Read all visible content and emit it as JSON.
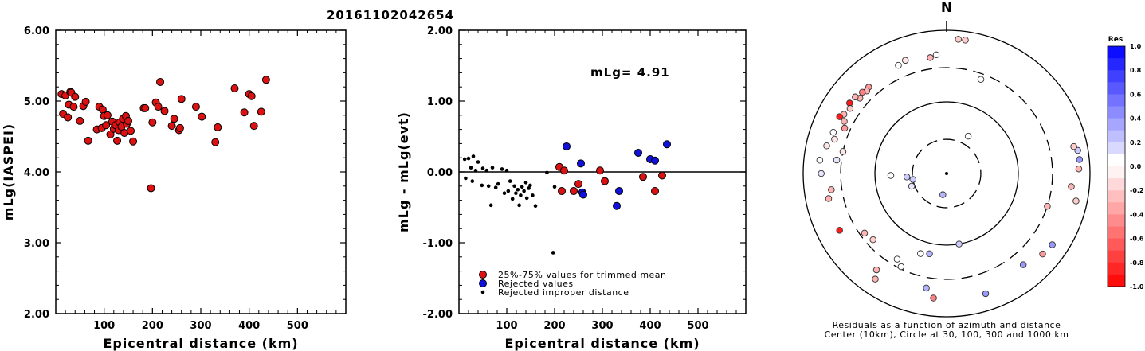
{
  "title": "20161102042654",
  "left_panel": {
    "ylabel": "mLg(IASPEI)",
    "xlabel": "Epicentral distance (km)",
    "yticks": [
      "2.00",
      "3.00",
      "4.00",
      "5.00",
      "6.00"
    ],
    "xticks": [
      "100",
      "200",
      "300",
      "400",
      "500"
    ]
  },
  "middle_panel": {
    "ylabel": "mLg - mLg(evt)",
    "xlabel": "Epicentral distance (km)",
    "yticks": [
      "-2.00",
      "-1.00",
      "0.00",
      "1.00",
      "2.00"
    ],
    "xticks": [
      "100",
      "200",
      "300",
      "400",
      "500"
    ],
    "annotation": "mLg= 4.91",
    "legend": [
      {
        "label": "25%-75% values for trimmed mean",
        "color": "#dd1111"
      },
      {
        "label": "Rejected values",
        "color": "#1111dd"
      },
      {
        "label": "Rejected improper distance",
        "color": "#000000"
      }
    ]
  },
  "polar_panel": {
    "north_label": "N",
    "caption_line1": "Residuals as a function of azimuth and distance",
    "caption_line2": "Center (10km), Circle at 30, 100, 300 and 1000 km"
  },
  "colorbar": {
    "title": "Res",
    "ticks": [
      "1.0",
      "0.8",
      "0.6",
      "0.4",
      "0.2",
      "0.0",
      "-0.2",
      "-0.4",
      "-0.6",
      "-0.8",
      "-1.0"
    ]
  },
  "colors": {
    "red": "#dd1111",
    "blue": "#1111dd",
    "black": "#000000"
  },
  "chart_data": [
    {
      "type": "scatter",
      "xlabel": "Epicentral distance (km)",
      "ylabel": "mLg(IASPEI)",
      "xlim": [
        0,
        600
      ],
      "ylim": [
        2,
        6
      ],
      "points": [
        [
          12,
          5.1
        ],
        [
          15,
          4.82
        ],
        [
          20,
          5.08
        ],
        [
          25,
          4.77
        ],
        [
          27,
          4.95
        ],
        [
          30,
          5.13
        ],
        [
          32,
          5.12
        ],
        [
          37,
          4.92
        ],
        [
          40,
          5.06
        ],
        [
          50,
          4.72
        ],
        [
          57,
          4.93
        ],
        [
          62,
          4.99
        ],
        [
          67,
          4.44
        ],
        [
          85,
          4.6
        ],
        [
          90,
          4.92
        ],
        [
          95,
          4.62
        ],
        [
          97,
          4.88
        ],
        [
          100,
          4.79
        ],
        [
          104,
          4.66
        ],
        [
          107,
          4.8
        ],
        [
          113,
          4.53
        ],
        [
          117,
          4.71
        ],
        [
          120,
          4.61
        ],
        [
          124,
          4.66
        ],
        [
          127,
          4.44
        ],
        [
          130,
          4.59
        ],
        [
          132,
          4.7
        ],
        [
          136,
          4.64
        ],
        [
          139,
          4.75
        ],
        [
          142,
          4.55
        ],
        [
          145,
          4.79
        ],
        [
          147,
          4.68
        ],
        [
          150,
          4.72
        ],
        [
          155,
          4.58
        ],
        [
          160,
          4.43
        ],
        [
          182,
          4.9
        ],
        [
          185,
          4.9
        ],
        [
          197,
          3.77
        ],
        [
          200,
          4.7
        ],
        [
          207,
          4.98
        ],
        [
          212,
          4.92
        ],
        [
          216,
          5.27
        ],
        [
          225,
          4.86
        ],
        [
          240,
          4.65
        ],
        [
          245,
          4.75
        ],
        [
          255,
          4.59
        ],
        [
          257,
          4.62
        ],
        [
          260,
          5.03
        ],
        [
          290,
          4.92
        ],
        [
          302,
          4.78
        ],
        [
          330,
          4.42
        ],
        [
          335,
          4.63
        ],
        [
          370,
          5.18
        ],
        [
          390,
          4.84
        ],
        [
          400,
          5.1
        ],
        [
          405,
          5.07
        ],
        [
          410,
          4.65
        ],
        [
          425,
          4.85
        ],
        [
          435,
          5.3
        ]
      ]
    },
    {
      "type": "scatter",
      "xlabel": "Epicentral distance (km)",
      "ylabel": "mLg - mLg(evt)",
      "xlim": [
        0,
        600
      ],
      "ylim": [
        -2,
        2
      ],
      "annotation": "mLg= 4.91",
      "series": [
        {
          "name": "25%-75% values for trimmed mean",
          "points": [
            [
              210,
              0.07
            ],
            [
              215,
              -0.27
            ],
            [
              220,
              0.02
            ],
            [
              240,
              -0.27
            ],
            [
              250,
              -0.17
            ],
            [
              295,
              0.02
            ],
            [
              305,
              -0.13
            ],
            [
              385,
              -0.07
            ],
            [
              410,
              -0.27
            ],
            [
              425,
              -0.05
            ]
          ]
        },
        {
          "name": "Rejected values",
          "points": [
            [
              225,
              0.36
            ],
            [
              255,
              0.12
            ],
            [
              258,
              -0.29
            ],
            [
              260,
              -0.32
            ],
            [
              330,
              -0.48
            ],
            [
              335,
              -0.27
            ],
            [
              375,
              0.27
            ],
            [
              400,
              0.18
            ],
            [
              410,
              0.16
            ],
            [
              435,
              0.39
            ]
          ]
        },
        {
          "name": "Rejected improper distance",
          "points": [
            [
              12,
              0.18
            ],
            [
              14,
              -0.09
            ],
            [
              20,
              0.19
            ],
            [
              25,
              0.06
            ],
            [
              28,
              -0.13
            ],
            [
              30,
              0.22
            ],
            [
              35,
              0.02
            ],
            [
              40,
              0.14
            ],
            [
              48,
              -0.19
            ],
            [
              50,
              0.05
            ],
            [
              58,
              0.02
            ],
            [
              62,
              -0.2
            ],
            [
              67,
              -0.47
            ],
            [
              70,
              0.06
            ],
            [
              77,
              -0.22
            ],
            [
              82,
              -0.17
            ],
            [
              90,
              0.04
            ],
            [
              95,
              -0.3
            ],
            [
              100,
              0.02
            ],
            [
              103,
              -0.27
            ],
            [
              107,
              -0.13
            ],
            [
              112,
              -0.38
            ],
            [
              116,
              -0.2
            ],
            [
              119,
              -0.3
            ],
            [
              123,
              -0.25
            ],
            [
              126,
              -0.47
            ],
            [
              129,
              -0.33
            ],
            [
              132,
              -0.21
            ],
            [
              136,
              -0.27
            ],
            [
              140,
              -0.15
            ],
            [
              142,
              -0.37
            ],
            [
              146,
              -0.23
            ],
            [
              149,
              -0.19
            ],
            [
              154,
              -0.33
            ],
            [
              160,
              -0.48
            ],
            [
              184,
              -0.01
            ],
            [
              197,
              -1.14
            ],
            [
              200,
              -0.21
            ]
          ]
        }
      ]
    },
    {
      "type": "scatter",
      "subtype": "polar",
      "note_units": "azimuth in degrees clockwise from North, distance in km, residual in mLg units",
      "rings_km": [
        30,
        100,
        300,
        1000
      ],
      "points": [
        {
          "az": 340,
          "dist": 480,
          "res": -0.1
        },
        {
          "az": 336,
          "dist": 450,
          "res": 0.0
        },
        {
          "az": 5,
          "dist": 760,
          "res": -0.2
        },
        {
          "az": 8,
          "dist": 760,
          "res": -0.2
        },
        {
          "az": 318,
          "dist": 420,
          "res": -0.4
        },
        {
          "az": 316,
          "dist": 400,
          "res": -0.3
        },
        {
          "az": 314,
          "dist": 430,
          "res": -0.5
        },
        {
          "az": 311,
          "dist": 400,
          "res": -0.3
        },
        {
          "az": 310,
          "dist": 460,
          "res": -0.3
        },
        {
          "az": 306,
          "dist": 470,
          "res": -0.9
        },
        {
          "az": 304,
          "dist": 420,
          "res": -0.2
        },
        {
          "az": 300,
          "dist": 450,
          "res": -0.3
        },
        {
          "az": 298,
          "dist": 490,
          "res": -0.9
        },
        {
          "az": 297,
          "dist": 400,
          "res": -0.3
        },
        {
          "az": 294,
          "dist": 360,
          "res": -0.4
        },
        {
          "az": 290,
          "dist": 480,
          "res": 0.0
        },
        {
          "az": 287,
          "dist": 430,
          "res": -0.1
        },
        {
          "az": 283,
          "dist": 520,
          "res": -0.1
        },
        {
          "az": 282,
          "dist": 300,
          "res": -0.1
        },
        {
          "az": 277,
          "dist": 350,
          "res": 0.1
        },
        {
          "az": 276,
          "dist": 600,
          "res": 0.0
        },
        {
          "az": 270,
          "dist": 560,
          "res": 0.1
        },
        {
          "az": 262,
          "dist": 420,
          "res": -0.3
        },
        {
          "az": 258,
          "dist": 480,
          "res": -0.3
        },
        {
          "az": 242,
          "dist": 490,
          "res": -0.9
        },
        {
          "az": 234,
          "dist": 260,
          "res": -0.3
        },
        {
          "az": 228,
          "dist": 240,
          "res": -0.2
        },
        {
          "az": 216,
          "dist": 460,
          "res": -0.3
        },
        {
          "az": 214,
          "dist": 600,
          "res": -0.3
        },
        {
          "az": 210,
          "dist": 240,
          "res": 0.0
        },
        {
          "az": 206,
          "dist": 280,
          "res": 0.0
        },
        {
          "az": 198,
          "dist": 150,
          "res": 0.0
        },
        {
          "az": 192,
          "dist": 140,
          "res": 0.3
        },
        {
          "az": 190,
          "dist": 420,
          "res": 0.3
        },
        {
          "az": 186,
          "dist": 560,
          "res": -0.5
        },
        {
          "az": 170,
          "dist": 100,
          "res": 0.2
        },
        {
          "az": 162,
          "dist": 580,
          "res": 0.4
        },
        {
          "az": 140,
          "dist": 460,
          "res": 0.4
        },
        {
          "az": 130,
          "dist": 560,
          "res": -0.4
        },
        {
          "az": 124,
          "dist": 600,
          "res": 0.4
        },
        {
          "az": 108,
          "dist": 300,
          "res": -0.3
        },
        {
          "az": 102,
          "dist": 700,
          "res": -0.2
        },
        {
          "az": 96,
          "dist": 560,
          "res": -0.3
        },
        {
          "az": 88,
          "dist": 700,
          "res": -0.3
        },
        {
          "az": 84,
          "dist": 730,
          "res": 0.4
        },
        {
          "az": 80,
          "dist": 720,
          "res": 0.2
        },
        {
          "az": 78,
          "dist": 650,
          "res": -0.2
        },
        {
          "az": 190,
          "dist": 20,
          "res": 0.3
        },
        {
          "az": 260,
          "dist": 30,
          "res": 0.2
        },
        {
          "az": 265,
          "dist": 36,
          "res": 0.2
        },
        {
          "az": 250,
          "dist": 33,
          "res": 0.1
        },
        {
          "az": 268,
          "dist": 60,
          "res": 0.0
        },
        {
          "az": 20,
          "dist": 250,
          "res": 0.0
        },
        {
          "az": 30,
          "dist": 40,
          "res": 0.0
        },
        {
          "az": 355,
          "dist": 460,
          "res": 0.0
        },
        {
          "az": 352,
          "dist": 430,
          "res": -0.3
        }
      ]
    }
  ]
}
